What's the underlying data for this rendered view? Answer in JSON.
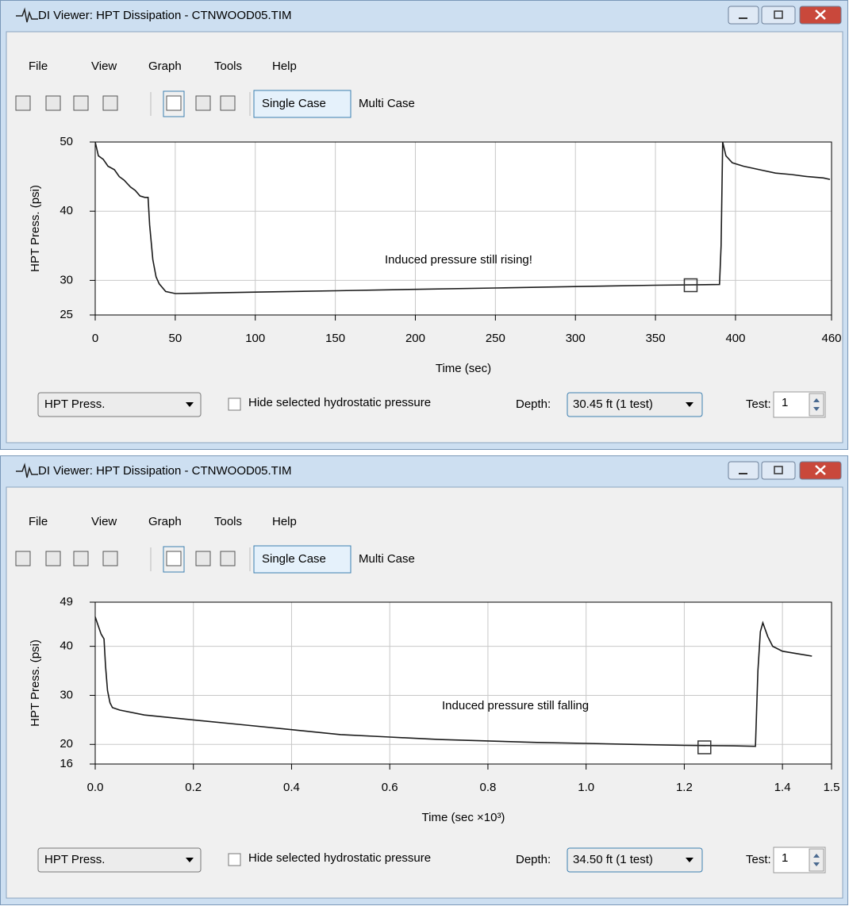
{
  "windows": [
    {
      "title": "DI Viewer: HPT Dissipation - CTNWOOD05.TIM",
      "menu": [
        "File",
        "View",
        "Graph",
        "Tools",
        "Help"
      ],
      "toolbar": [
        "Single Case",
        "Multi Case"
      ],
      "controls": {
        "series_select": "HPT Press.",
        "checkbox": "Hide selected hydrostatic pressure",
        "depth_label": "Depth:",
        "depth": "30.45 ft (1 test)",
        "test_label": "Test:",
        "test": "1"
      }
    },
    {
      "title": "DI Viewer: HPT Dissipation - CTNWOOD05.TIM",
      "menu": [
        "File",
        "View",
        "Graph",
        "Tools",
        "Help"
      ],
      "toolbar": [
        "Single Case",
        "Multi Case"
      ],
      "controls": {
        "series_select": "HPT Press.",
        "checkbox": "Hide selected hydrostatic pressure",
        "depth_label": "Depth:",
        "depth": "34.50 ft (1 test)",
        "test_label": "Test:",
        "test": "1"
      }
    }
  ],
  "chart_data": [
    {
      "type": "line",
      "x_label": "Time (sec)",
      "y_label": "HPT Press. (psi)",
      "annotation": "Induced pressure still rising!",
      "color": "#1a1a1a",
      "grid": true,
      "xlim": [
        0,
        460
      ],
      "ylim": [
        25,
        50
      ],
      "xticks": [
        0,
        50,
        100,
        150,
        200,
        250,
        300,
        350,
        400,
        460
      ],
      "yticks": [
        25,
        30,
        40,
        50
      ],
      "x": [
        0,
        2,
        5,
        8,
        12,
        15,
        18,
        22,
        25,
        28,
        31,
        33,
        34,
        36,
        38,
        40,
        44,
        50,
        100,
        150,
        200,
        250,
        300,
        350,
        390,
        391,
        392,
        394,
        398,
        405,
        415,
        425,
        435,
        445,
        455,
        459
      ],
      "values": [
        50,
        48,
        47.5,
        46.5,
        46,
        45,
        44.5,
        43.5,
        43,
        42.2,
        42,
        42,
        38,
        33,
        30.5,
        29.5,
        28.4,
        28.1,
        28.3,
        28.5,
        28.7,
        28.9,
        29.1,
        29.3,
        29.4,
        35,
        50,
        48,
        47,
        46.5,
        46,
        45.5,
        45.3,
        45,
        44.8,
        44.6
      ],
      "cursor": {
        "x": 372,
        "y": 29.3
      }
    },
    {
      "type": "line",
      "x_label": "Time (sec ×10³)",
      "y_label": "HPT Press. (psi)",
      "annotation": "Induced pressure still falling",
      "color": "#1a1a1a",
      "grid": true,
      "xlim": [
        0,
        1.5
      ],
      "ylim": [
        16,
        49
      ],
      "xticks": [
        {
          "value": 0,
          "label": "0.0"
        },
        0.2,
        0.4,
        0.6,
        0.8,
        {
          "value": 1,
          "label": "1.0"
        },
        1.2,
        1.4,
        1.5
      ],
      "yticks": [
        16,
        20,
        30,
        40,
        49
      ],
      "x": [
        0,
        0.005,
        0.012,
        0.018,
        0.021,
        0.025,
        0.03,
        0.035,
        0.05,
        0.1,
        0.2,
        0.3,
        0.4,
        0.5,
        0.6,
        0.7,
        0.8,
        0.9,
        1.0,
        1.1,
        1.2,
        1.3,
        1.345,
        1.35,
        1.355,
        1.36,
        1.37,
        1.38,
        1.4,
        1.43,
        1.46
      ],
      "values": [
        46,
        44.5,
        42.5,
        41.5,
        36,
        31,
        28.5,
        27.5,
        27,
        26,
        25,
        24,
        23,
        22,
        21.5,
        21,
        20.7,
        20.4,
        20.2,
        20,
        19.8,
        19.7,
        19.6,
        35,
        43,
        44.8,
        42,
        40,
        39,
        38.5,
        38
      ],
      "cursor": {
        "x": 1.241,
        "y": 19.4
      }
    }
  ]
}
